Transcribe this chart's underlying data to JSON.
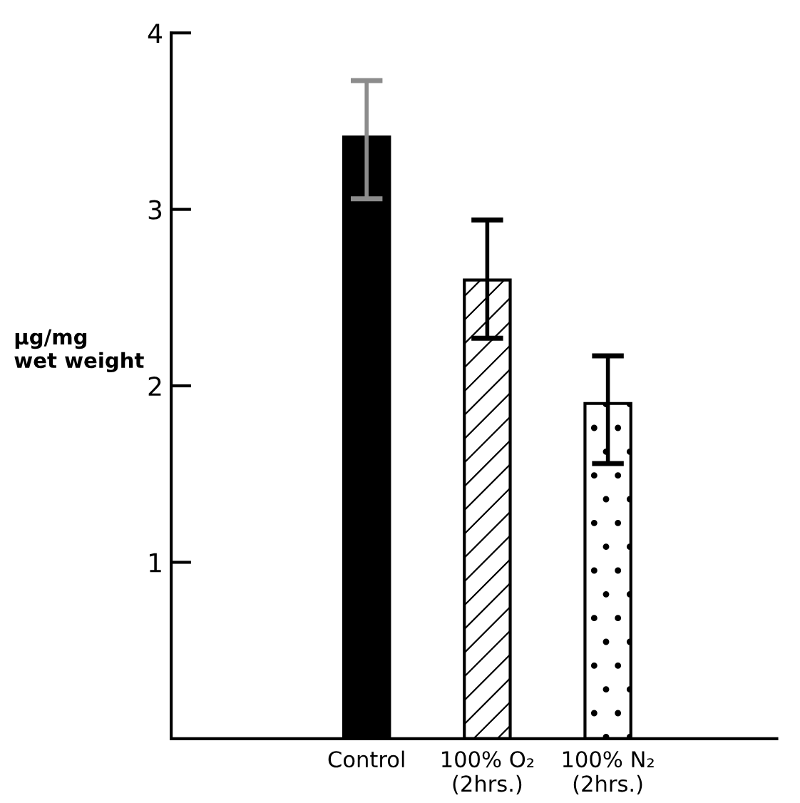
{
  "chart_data": {
    "type": "bar",
    "ylabel": "µg/mg\nwet weight",
    "categories": [
      "Control",
      "100% O₂\n(2hrs.)",
      "100% N₂\n(2hrs.)"
    ],
    "values": [
      3.41,
      2.6,
      1.9
    ],
    "errors": [
      [
        3.06,
        3.73
      ],
      [
        2.27,
        2.94
      ],
      [
        1.56,
        2.17
      ]
    ],
    "colors": [
      "#000000",
      "#ffffff",
      "#ffffff"
    ],
    "ylim": [
      0,
      4
    ],
    "yticks": [
      1,
      2,
      3,
      4
    ],
    "grid": false,
    "legend": false
  }
}
